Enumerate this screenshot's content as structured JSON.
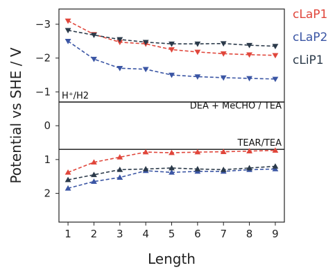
{
  "chart_data": {
    "type": "line",
    "xlabel": "Length",
    "ylabel": "Potential vs SHE / V",
    "xlim": [
      0.65,
      9.35
    ],
    "ylim": [
      -3.45,
      2.85
    ],
    "y_inverted": true,
    "x_ticks": [
      1,
      2,
      3,
      4,
      5,
      6,
      7,
      8,
      9
    ],
    "y_ticks": [
      -3,
      -2,
      -1,
      0,
      1,
      2
    ],
    "y_tick_labels": [
      "−3",
      "−2",
      "−1",
      "0",
      "1",
      "2"
    ],
    "legend_position": "outside-right",
    "x": [
      1,
      2,
      3,
      4,
      5,
      6,
      7,
      8,
      9
    ],
    "series": [
      {
        "name": "cLaP1",
        "color": "#e0463b",
        "reduction": [
          -3.1,
          -2.7,
          -2.47,
          -2.42,
          -2.25,
          -2.18,
          -2.13,
          -2.1,
          -2.08
        ],
        "oxidation": [
          1.38,
          1.08,
          0.93,
          0.78,
          0.8,
          0.78,
          0.77,
          0.75,
          0.73
        ]
      },
      {
        "name": "cLaP2",
        "color": "#3a55a4",
        "reduction": [
          -2.5,
          -1.97,
          -1.7,
          -1.67,
          -1.5,
          -1.45,
          -1.42,
          -1.4,
          -1.38
        ],
        "oxidation": [
          1.85,
          1.65,
          1.53,
          1.33,
          1.38,
          1.35,
          1.35,
          1.3,
          1.28
        ]
      },
      {
        "name": "cLiP1",
        "color": "#2b3a4a",
        "reduction": [
          -2.82,
          -2.68,
          -2.55,
          -2.47,
          -2.42,
          -2.42,
          -2.43,
          -2.38,
          -2.35
        ],
        "oxidation": [
          1.6,
          1.45,
          1.3,
          1.28,
          1.25,
          1.28,
          1.3,
          1.25,
          1.2
        ]
      }
    ],
    "reference_lines": [
      {
        "y": -0.7,
        "label": "H⁺/H2",
        "label_position": "above-left"
      },
      {
        "y": 0.7,
        "label": "TEAR/TEA",
        "label_position": "above-right"
      }
    ],
    "annotations": [
      {
        "text": "DEA + MeCHO / TEA",
        "y": -0.55,
        "position": "right"
      }
    ]
  }
}
